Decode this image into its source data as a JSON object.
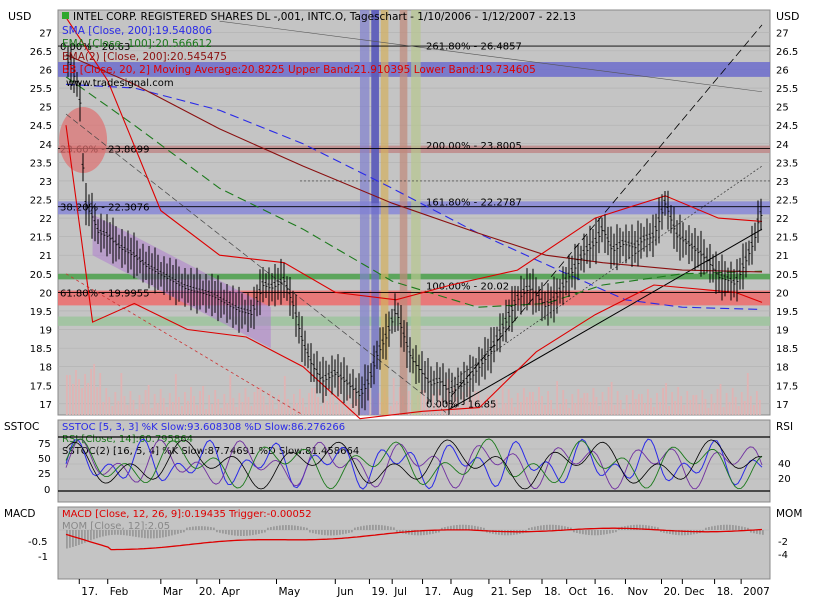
{
  "currency_label": "USD",
  "legend_lines": [
    {
      "text": "INTEL CORP. REGISTERED SHARES DL -,001, INTC.O, Tageschart - 1/10/2006 - 1/12/2007 - 22.13",
      "color": "#000000"
    },
    {
      "text": "SMA [Close, 200]:19.540806",
      "color": "#2a2ae8"
    },
    {
      "text": "EMA [Close, 100]:20.566612",
      "color": "#1c7a1c"
    },
    {
      "text": "EMA(2) [Close, 200]:20.545475",
      "color": "#8a1010"
    },
    {
      "text": "BB [Close, 20, 2] Moving Average:20.8225 Upper Band:21.910395 Lower Band:19.734605",
      "color": "#dd0000"
    },
    {
      "text": "www.tradesignal.com",
      "color": "#000000"
    }
  ],
  "fib_labels": [
    {
      "text": "0.00% - 26.63",
      "y": 26.63
    },
    {
      "text": "23.60% - 23.8699",
      "y": 23.8699
    },
    {
      "text": "38.20% - 22.3076",
      "y": 22.3076
    },
    {
      "text": "61.80% - 19.9955",
      "y": 19.9955
    },
    {
      "text": "261.80% - 26.4857",
      "y": 26.4857
    },
    {
      "text": "200.00% - 23.8005",
      "y": 23.8005
    },
    {
      "text": "161.80% - 22.2787",
      "y": 22.2787
    },
    {
      "text": "100.00% - 20.02",
      "y": 20.02
    },
    {
      "text": "0.00% - 16.85",
      "y": 16.85
    }
  ],
  "osc_panel": {
    "label_left": "SSTOC",
    "label_right": "RSI",
    "legend_lines": [
      {
        "text": "SSTOC [5, 3, 3] %K Slow:93.608308 %D Slow:86.276266",
        "color": "#2a2ae8"
      },
      {
        "text": "RSI [Close, 14]:60.795864",
        "color": "#1c7a1c"
      },
      {
        "text": "SSTOC(2) [16, 5, 4] %K Slow:87.74691 %D Slow:81.458664",
        "color": "#000000"
      }
    ],
    "left_ticks": [
      "75",
      "50",
      "25",
      "0"
    ],
    "right_ticks": [
      "40",
      "20"
    ]
  },
  "macd_panel": {
    "label_left": "MACD",
    "label_right": "MOM",
    "legend_lines": [
      {
        "text": "MACD [Close, 12, 26, 9]:0.19435 Trigger:-0.00052",
        "color": "#dd0000"
      },
      {
        "text": "MOM [Close, 12]:2.05",
        "color": "#888888"
      }
    ],
    "left_ticks": [
      "-0.5",
      "-1"
    ],
    "right_ticks": [
      "-2",
      "-4"
    ]
  },
  "x_labels": [
    "17.",
    "Feb",
    "Mar",
    "20.",
    "Apr",
    "May",
    "Jun",
    "19.",
    "Jul",
    "17.",
    "Aug",
    "21.",
    "Sep",
    "18.",
    "Oct",
    "16.",
    "Nov",
    "20.",
    "Dec",
    "18.",
    "2007"
  ],
  "chart_data": {
    "type": "candlestick",
    "title": "INTEL CORP. REGISTERED SHARES DL -,001, INTC.O, Tageschart - 1/10/2006 - 1/12/2007 - 22.13",
    "ylabel": "USD",
    "ylim": [
      16.7,
      27.6
    ],
    "y_ticks": [
      17,
      17.5,
      18,
      18.5,
      19,
      19.5,
      20,
      20.5,
      21,
      21.5,
      22,
      22.5,
      23,
      23.5,
      24,
      24.5,
      25,
      25.5,
      26,
      26.5,
      27
    ],
    "x_range": [
      "2006-01-10",
      "2007-01-12"
    ],
    "x_ticks": [
      "2006-01-17",
      "2006-02-01",
      "2006-03-01",
      "2006-03-20",
      "2006-04-01",
      "2006-05-01",
      "2006-06-01",
      "2006-06-19",
      "2006-07-01",
      "2006-07-17",
      "2006-08-01",
      "2006-08-21",
      "2006-09-01",
      "2006-09-18",
      "2006-10-01",
      "2006-10-16",
      "2006-11-01",
      "2006-11-20",
      "2006-12-01",
      "2006-12-18",
      "2007-01-01"
    ],
    "close_path": [
      [
        "2006-01-10",
        26.3
      ],
      [
        "2006-01-13",
        26.0
      ],
      [
        "2006-01-17",
        25.4
      ],
      [
        "2006-01-18",
        24.6
      ],
      [
        "2006-01-19",
        23.3
      ],
      [
        "2006-01-20",
        22.4
      ],
      [
        "2006-01-24",
        22.0
      ],
      [
        "2006-01-27",
        21.6
      ],
      [
        "2006-02-01",
        21.5
      ],
      [
        "2006-02-07",
        21.2
      ],
      [
        "2006-02-14",
        21.0
      ],
      [
        "2006-02-21",
        20.7
      ],
      [
        "2006-02-28",
        20.5
      ],
      [
        "2006-03-07",
        20.3
      ],
      [
        "2006-03-14",
        20.1
      ],
      [
        "2006-03-21",
        20.0
      ],
      [
        "2006-03-28",
        19.9
      ],
      [
        "2006-04-04",
        19.7
      ],
      [
        "2006-04-11",
        19.5
      ],
      [
        "2006-04-18",
        19.4
      ],
      [
        "2006-04-24",
        20.2
      ],
      [
        "2006-04-28",
        20.1
      ],
      [
        "2006-05-05",
        20.3
      ],
      [
        "2006-05-10",
        19.6
      ],
      [
        "2006-05-15",
        18.6
      ],
      [
        "2006-05-19",
        18.1
      ],
      [
        "2006-05-25",
        17.6
      ],
      [
        "2006-06-01",
        17.8
      ],
      [
        "2006-06-08",
        17.5
      ],
      [
        "2006-06-14",
        17.2
      ],
      [
        "2006-06-19",
        17.6
      ],
      [
        "2006-06-23",
        18.3
      ],
      [
        "2006-06-28",
        18.8
      ],
      [
        "2006-07-03",
        19.5
      ],
      [
        "2006-07-06",
        19.0
      ],
      [
        "2006-07-11",
        18.2
      ],
      [
        "2006-07-17",
        17.8
      ],
      [
        "2006-07-21",
        17.5
      ],
      [
        "2006-07-26",
        17.6
      ],
      [
        "2006-07-31",
        17.3
      ],
      [
        "2006-08-04",
        17.4
      ],
      [
        "2006-08-10",
        17.6
      ],
      [
        "2006-08-16",
        18.0
      ],
      [
        "2006-08-22",
        18.4
      ],
      [
        "2006-08-29",
        19.1
      ],
      [
        "2006-09-05",
        19.8
      ],
      [
        "2006-09-11",
        20.1
      ],
      [
        "2006-09-15",
        19.9
      ],
      [
        "2006-09-20",
        19.6
      ],
      [
        "2006-09-25",
        19.8
      ],
      [
        "2006-10-02",
        20.4
      ],
      [
        "2006-10-06",
        20.7
      ],
      [
        "2006-10-11",
        21.1
      ],
      [
        "2006-10-16",
        21.3
      ],
      [
        "2006-10-20",
        21.7
      ],
      [
        "2006-10-25",
        21.1
      ],
      [
        "2006-10-31",
        21.3
      ],
      [
        "2006-11-06",
        21.2
      ],
      [
        "2006-11-10",
        21.4
      ],
      [
        "2006-11-16",
        21.5
      ],
      [
        "2006-11-20",
        22.1
      ],
      [
        "2006-11-22",
        22.4
      ],
      [
        "2006-11-28",
        21.5
      ],
      [
        "2006-12-01",
        21.4
      ],
      [
        "2006-12-06",
        21.2
      ],
      [
        "2006-12-11",
        21.0
      ],
      [
        "2006-12-15",
        20.8
      ],
      [
        "2006-12-20",
        20.4
      ],
      [
        "2006-12-26",
        20.3
      ],
      [
        "2006-12-29",
        20.2
      ],
      [
        "2007-01-04",
        20.9
      ],
      [
        "2007-01-08",
        21.4
      ],
      [
        "2007-01-10",
        21.9
      ],
      [
        "2007-01-12",
        22.13
      ]
    ],
    "sma200_path": [
      [
        "2006-01-10",
        25.6
      ],
      [
        "2006-02-15",
        25.5
      ],
      [
        "2006-04-01",
        24.9
      ],
      [
        "2006-05-15",
        24.0
      ],
      [
        "2006-07-01",
        22.8
      ],
      [
        "2006-08-15",
        21.6
      ],
      [
        "2006-10-01",
        20.5
      ],
      [
        "2006-11-01",
        19.8
      ],
      [
        "2006-12-01",
        19.6
      ],
      [
        "2007-01-12",
        19.54
      ]
    ],
    "ema100_path": [
      [
        "2006-01-10",
        25.8
      ],
      [
        "2006-02-15",
        24.5
      ],
      [
        "2006-04-01",
        22.8
      ],
      [
        "2006-05-15",
        21.7
      ],
      [
        "2006-07-01",
        20.3
      ],
      [
        "2006-08-15",
        19.6
      ],
      [
        "2006-09-20",
        19.7
      ],
      [
        "2006-10-20",
        20.2
      ],
      [
        "2006-12-01",
        20.5
      ],
      [
        "2007-01-12",
        20.57
      ]
    ],
    "ema200_path": [
      [
        "2006-01-10",
        26.4
      ],
      [
        "2006-02-15",
        25.6
      ],
      [
        "2006-04-01",
        24.4
      ],
      [
        "2006-05-15",
        23.4
      ],
      [
        "2006-07-01",
        22.4
      ],
      [
        "2006-08-15",
        21.6
      ],
      [
        "2006-09-20",
        21.0
      ],
      [
        "2006-10-20",
        20.8
      ],
      [
        "2006-12-01",
        20.6
      ],
      [
        "2007-01-12",
        20.55
      ]
    ],
    "bb_upper_path": [
      [
        "2006-01-10",
        27.4
      ],
      [
        "2006-02-01",
        25.7
      ],
      [
        "2006-03-01",
        22.2
      ],
      [
        "2006-04-01",
        21.0
      ],
      [
        "2006-05-05",
        20.8
      ],
      [
        "2006-06-01",
        20.0
      ],
      [
        "2006-07-03",
        19.8
      ],
      [
        "2006-08-01",
        20.2
      ],
      [
        "2006-09-05",
        20.6
      ],
      [
        "2006-10-16",
        22.0
      ],
      [
        "2006-11-22",
        22.6
      ],
      [
        "2006-12-20",
        22.0
      ],
      [
        "2007-01-12",
        21.91
      ]
    ],
    "bb_lower_path": [
      [
        "2006-01-10",
        24.5
      ],
      [
        "2006-01-24",
        19.2
      ],
      [
        "2006-02-15",
        19.7
      ],
      [
        "2006-03-15",
        19.0
      ],
      [
        "2006-04-15",
        18.8
      ],
      [
        "2006-05-15",
        18.0
      ],
      [
        "2006-06-14",
        16.6
      ],
      [
        "2006-07-17",
        16.8
      ],
      [
        "2006-08-16",
        16.9
      ],
      [
        "2006-09-15",
        18.4
      ],
      [
        "2006-10-16",
        19.4
      ],
      [
        "2006-11-16",
        20.2
      ],
      [
        "2006-12-29",
        20.0
      ],
      [
        "2007-01-12",
        19.73
      ]
    ],
    "horizontal_lines": [
      {
        "y": 26.63,
        "label": "0.00% - 26.63"
      },
      {
        "y": 23.8699,
        "label": "23.60% - 23.8699"
      },
      {
        "y": 22.3076,
        "label": "38.20% - 22.3076"
      },
      {
        "y": 19.9955,
        "label": "61.80% - 19.9955"
      }
    ],
    "zones": [
      {
        "y0": 25.8,
        "y1": 26.2,
        "color": "#6d6dcc"
      },
      {
        "y0": 23.75,
        "y1": 23.95,
        "color": "#c08a8a"
      },
      {
        "y0": 22.1,
        "y1": 22.45,
        "color": "#8888d8"
      },
      {
        "y0": 19.65,
        "y1": 20.05,
        "color": "#ee6c6c"
      },
      {
        "y0": 19.1,
        "y1": 19.35,
        "color": "#9dc49d"
      },
      {
        "y0": 20.35,
        "y1": 20.5,
        "color": "#4aa04a"
      }
    ],
    "stoch_k_last": 93.608308,
    "stoch_d_last": 86.276266,
    "rsi_last": 60.795864,
    "macd_last": 0.19435,
    "macd_trigger_last": -0.00052,
    "mom_last": 2.05
  }
}
